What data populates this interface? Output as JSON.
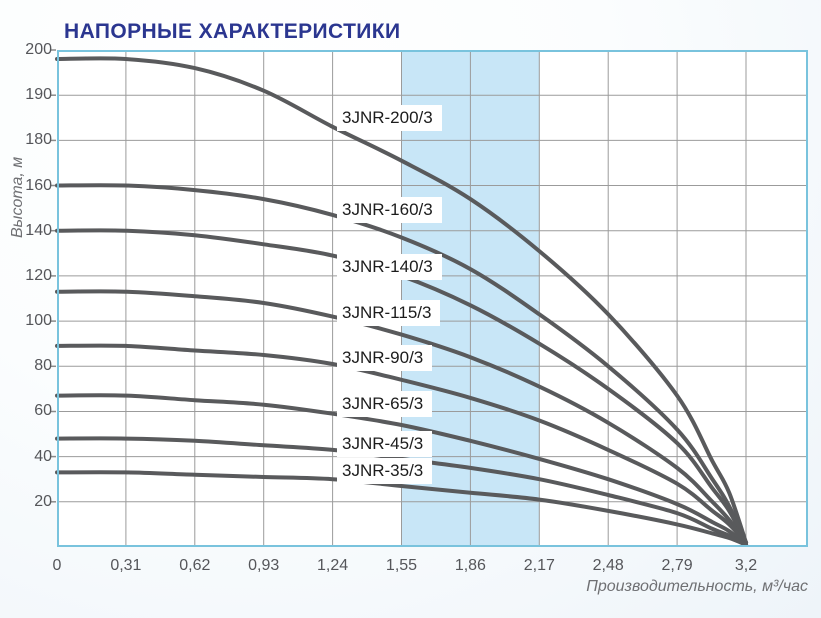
{
  "page": {
    "title": "НАПОРНЫЕ ХАРАКТЕРИСТИКИ"
  },
  "axes": {
    "y_title": "Высота, м",
    "x_title": "Производительность, м³/час",
    "y_tick_labels": [
      "200",
      "190",
      "180",
      "160",
      "140",
      "120",
      "100",
      "80",
      "60",
      "40",
      "20"
    ],
    "y_tick_values": [
      200,
      190,
      180,
      160,
      140,
      120,
      100,
      80,
      60,
      40,
      20
    ],
    "x_tick_labels": [
      "0",
      "0,31",
      "0,62",
      "0,93",
      "1,24",
      "1,55",
      "1,86",
      "2,17",
      "2,48",
      "2,79",
      "3,2"
    ],
    "x_tick_values": [
      0,
      0.31,
      0.62,
      0.93,
      1.24,
      1.55,
      1.86,
      2.17,
      2.48,
      2.79,
      3.2
    ]
  },
  "chart_data": {
    "type": "line",
    "title": "НАПОРНЫЕ ХАРАКТЕРИСТИКИ",
    "xlabel": "Производительность, м³/час",
    "ylabel": "Высота, м",
    "xlim": [
      0,
      3.2
    ],
    "ylim": [
      0,
      200
    ],
    "grid": true,
    "axis_note": "gridlines evenly spaced; y steps are 20 m up to 180 then 10 m (190, 200); last x step is 2,79 to 3,2",
    "legend_position": "labels printed on plot next to each curve",
    "highlight_band": {
      "x_from": 1.55,
      "x_to": 2.17
    },
    "x": [
      0,
      0.31,
      0.62,
      0.93,
      1.24,
      1.55,
      1.86,
      2.17,
      2.48,
      2.79,
      3.0,
      3.1,
      3.2
    ],
    "series": [
      {
        "name": "3JNR-200/3",
        "max_head_m": 198,
        "values": [
          198,
          198,
          196,
          191,
          183,
          171,
          154,
          131,
          103,
          67,
          38,
          24,
          2
        ]
      },
      {
        "name": "3JNR-160/3",
        "max_head_m": 160,
        "values": [
          160,
          160,
          158,
          154,
          147,
          137,
          123,
          103,
          80,
          52,
          30,
          18,
          2
        ]
      },
      {
        "name": "3JNR-140/3",
        "max_head_m": 140,
        "values": [
          140,
          140,
          138,
          134,
          129,
          120,
          107,
          90,
          70,
          46,
          26,
          16,
          2
        ]
      },
      {
        "name": "3JNR-115/3",
        "max_head_m": 113,
        "values": [
          113,
          113,
          111,
          108,
          102,
          94,
          84,
          71,
          55,
          35,
          20,
          12,
          2
        ]
      },
      {
        "name": "3JNR-90/3",
        "max_head_m": 89,
        "values": [
          89,
          89,
          87,
          85,
          81,
          74,
          66,
          56,
          43,
          28,
          16,
          10,
          2
        ]
      },
      {
        "name": "3JNR-65/3",
        "max_head_m": 67,
        "values": [
          67,
          67,
          65,
          63,
          59,
          54,
          47,
          39,
          30,
          19,
          11,
          7,
          1
        ]
      },
      {
        "name": "3JNR-45/3",
        "max_head_m": 48,
        "values": [
          48,
          48,
          47,
          45,
          43,
          39,
          35,
          30,
          23,
          15,
          8,
          5,
          1
        ]
      },
      {
        "name": "3JNR-35/3",
        "max_head_m": 33,
        "values": [
          33,
          33,
          32,
          31,
          30,
          27,
          24,
          21,
          16,
          10,
          6,
          4,
          1
        ]
      }
    ]
  },
  "colors": {
    "title_navy": "#2b3690",
    "curve_gray": "#595a5c",
    "grid_gray": "#9b9b9b",
    "plot_border_blue": "#79c3dd",
    "band_blue": "#c8e6f7",
    "tick_text": "#55565a",
    "axis_title_text": "#6f7073",
    "label_text": "#1c1c1c",
    "plot_background": "#ffffff"
  }
}
